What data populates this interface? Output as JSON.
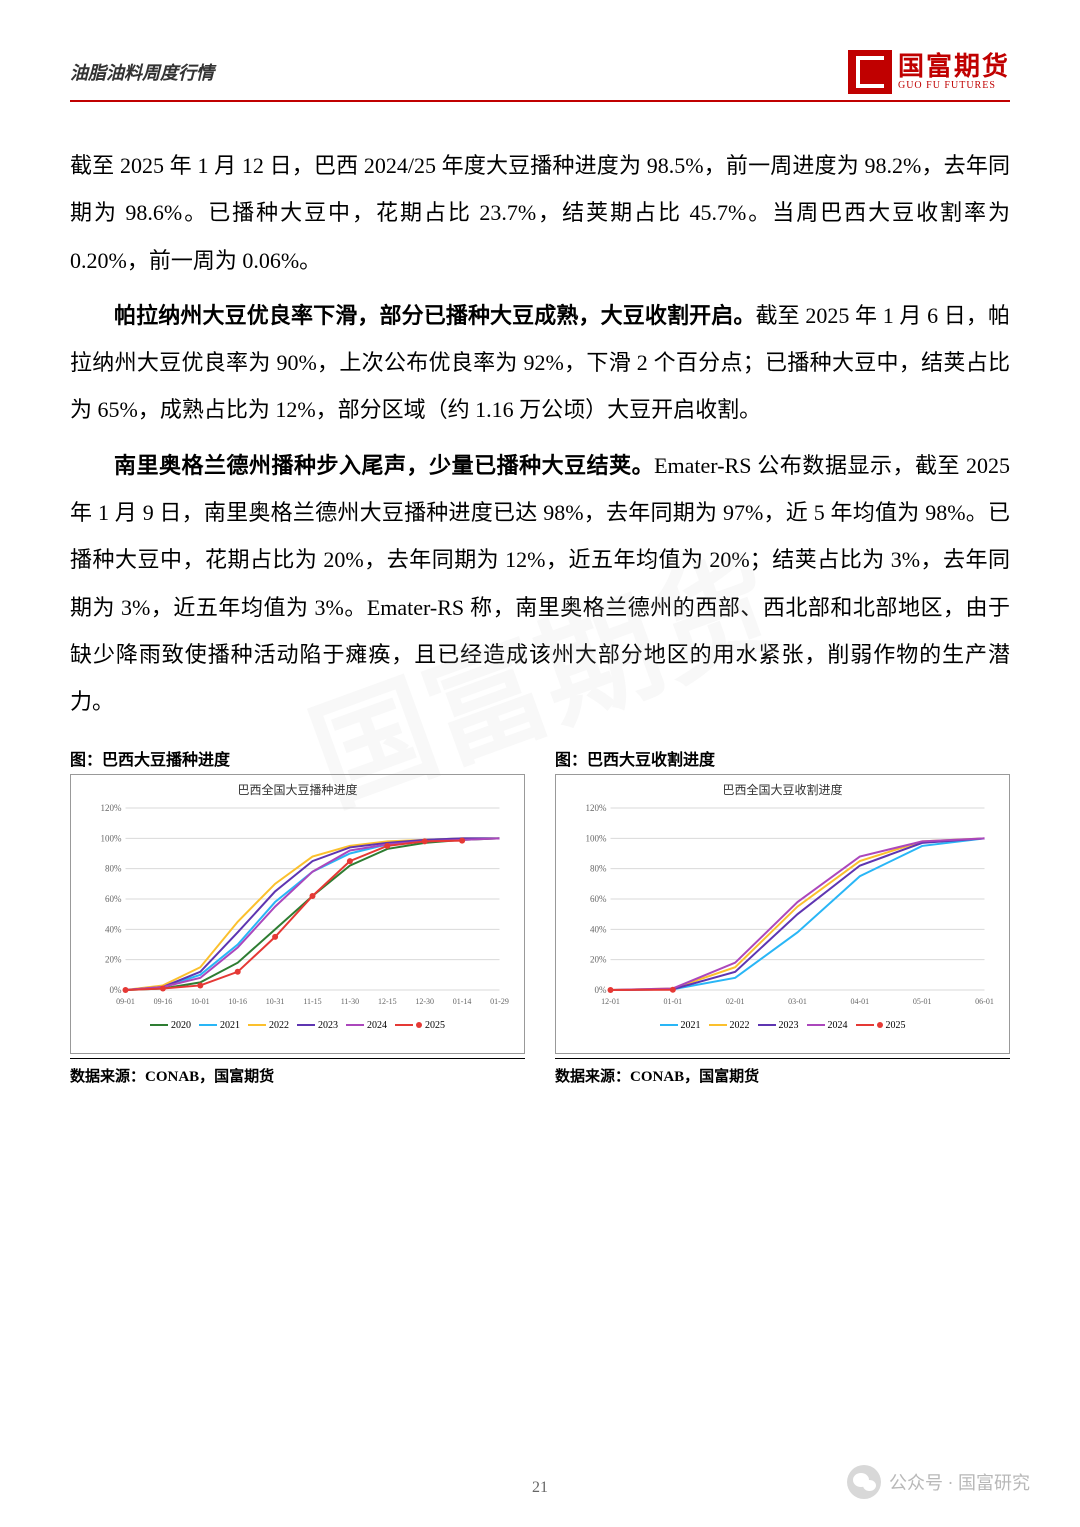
{
  "header": {
    "title": "油脂油料周度行情",
    "logo_cn": "国富期货",
    "logo_en": "GUO FU FUTURES"
  },
  "paragraphs": {
    "p1": "截至 2025 年 1 月 12 日，巴西 2024/25 年度大豆播种进度为 98.5%，前一周进度为 98.2%，去年同期为 98.6%。已播种大豆中，花期占比 23.7%，结荚期占比 45.7%。当周巴西大豆收割率为 0.20%，前一周为 0.06%。",
    "p2_lead": "帕拉纳州大豆优良率下滑，部分已播种大豆成熟，大豆收割开启。",
    "p2_rest": "截至 2025 年 1 月 6 日，帕拉纳州大豆优良率为 90%，上次公布优良率为 92%，下滑 2 个百分点；已播种大豆中，结荚占比为 65%，成熟占比为 12%，部分区域（约 1.16 万公顷）大豆开启收割。",
    "p3_lead": "南里奥格兰德州播种步入尾声，少量已播种大豆结荚。",
    "p3_rest": "Emater-RS 公布数据显示，截至 2025 年 1 月 9 日，南里奥格兰德州大豆播种进度已达 98%，去年同期为 97%，近 5 年均值为 98%。已播种大豆中，花期占比为 20%，去年同期为 12%，近五年均值为 20%；结荚占比为 3%，去年同期为 3%，近五年均值为 3%。Emater-RS 称，南里奥格兰德州的西部、西北部和北部地区，由于缺少降雨致使播种活动陷于瘫痪，且已经造成该州大部分地区的用水紧张，削弱作物的生产潜力。"
  },
  "chart1": {
    "outer_title": "图：巴西大豆播种进度",
    "inner_title": "巴西全国大豆播种进度",
    "source": "数据来源：CONAB，国富期货",
    "type": "line",
    "x_labels": [
      "09-01",
      "09-16",
      "10-01",
      "10-16",
      "10-31",
      "11-15",
      "11-30",
      "12-15",
      "12-30",
      "01-14",
      "01-29"
    ],
    "ylim": [
      0,
      120
    ],
    "ytick_step": 20,
    "grid_color": "#d9d9d9",
    "background_color": "#ffffff",
    "series": [
      {
        "name": "2020",
        "color": "#2e7d32",
        "values": [
          0,
          1,
          5,
          18,
          40,
          62,
          82,
          93,
          97,
          99,
          100
        ]
      },
      {
        "name": "2021",
        "color": "#29b6f6",
        "values": [
          0,
          2,
          10,
          30,
          58,
          78,
          90,
          96,
          99,
          100,
          100
        ]
      },
      {
        "name": "2022",
        "color": "#fbc02d",
        "values": [
          0,
          3,
          15,
          45,
          70,
          88,
          95,
          98,
          99,
          100,
          100
        ]
      },
      {
        "name": "2023",
        "color": "#5e35b1",
        "values": [
          0,
          2,
          12,
          38,
          65,
          85,
          94,
          97,
          99,
          100,
          100
        ]
      },
      {
        "name": "2024",
        "color": "#ab47bc",
        "values": [
          0,
          2,
          8,
          28,
          55,
          78,
          92,
          96,
          98,
          99,
          100
        ]
      },
      {
        "name": "2025",
        "color": "#e53935",
        "marker": true,
        "values": [
          0,
          1,
          3,
          12,
          35,
          62,
          85,
          95,
          98,
          98.5,
          null
        ]
      }
    ]
  },
  "chart2": {
    "outer_title": "图：巴西大豆收割进度",
    "inner_title": "巴西全国大豆收割进度",
    "source": "数据来源：CONAB，国富期货",
    "type": "line",
    "x_labels": [
      "12-01",
      "01-01",
      "02-01",
      "03-01",
      "04-01",
      "05-01",
      "06-01"
    ],
    "ylim": [
      0,
      120
    ],
    "ytick_step": 20,
    "grid_color": "#d9d9d9",
    "background_color": "#ffffff",
    "series": [
      {
        "name": "2021",
        "color": "#29b6f6",
        "values": [
          0,
          0.5,
          8,
          38,
          75,
          95,
          100
        ]
      },
      {
        "name": "2022",
        "color": "#fbc02d",
        "values": [
          0,
          1,
          15,
          55,
          85,
          98,
          100
        ]
      },
      {
        "name": "2023",
        "color": "#5e35b1",
        "values": [
          0,
          0.5,
          12,
          50,
          82,
          97,
          100
        ]
      },
      {
        "name": "2024",
        "color": "#ab47bc",
        "values": [
          0,
          1,
          18,
          58,
          88,
          98,
          100
        ]
      },
      {
        "name": "2025",
        "color": "#e53935",
        "marker": true,
        "values": [
          0,
          0.2,
          null,
          null,
          null,
          null,
          null
        ]
      }
    ]
  },
  "page_number": "21",
  "wechat_label": "公众号 · 国富研究",
  "watermark": "国富期货"
}
